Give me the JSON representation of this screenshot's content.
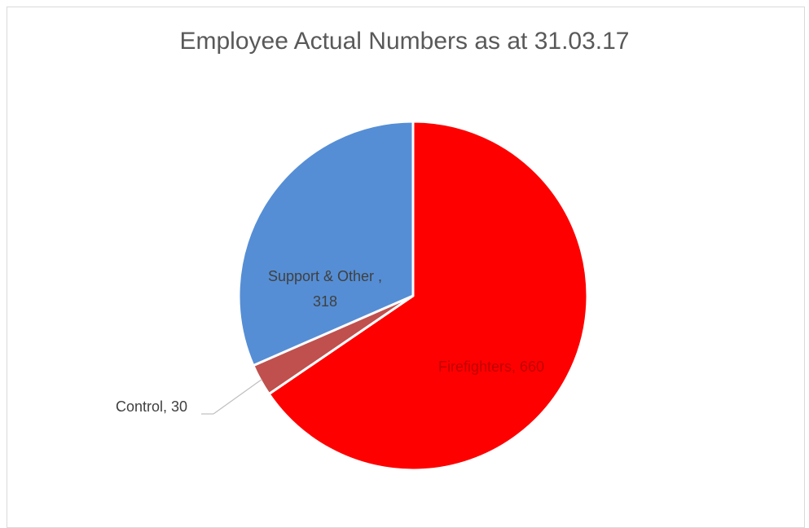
{
  "chart_data": {
    "type": "pie",
    "title": "Employee Actual Numbers as at 31.03.17",
    "slices": [
      {
        "name": "Firefighters",
        "value": 660,
        "color": "#ff0000",
        "label": "Firefighters, 660"
      },
      {
        "name": "Control",
        "value": 30,
        "color": "#c0504d",
        "label": "Control, 30"
      },
      {
        "name": "Support & Other ",
        "value": 318,
        "color": "#558ed5",
        "label_line1": "Support & Other ,",
        "label_line2": "318"
      }
    ],
    "legend": "none",
    "start_angle_deg": 0,
    "direction": "clockwise"
  }
}
